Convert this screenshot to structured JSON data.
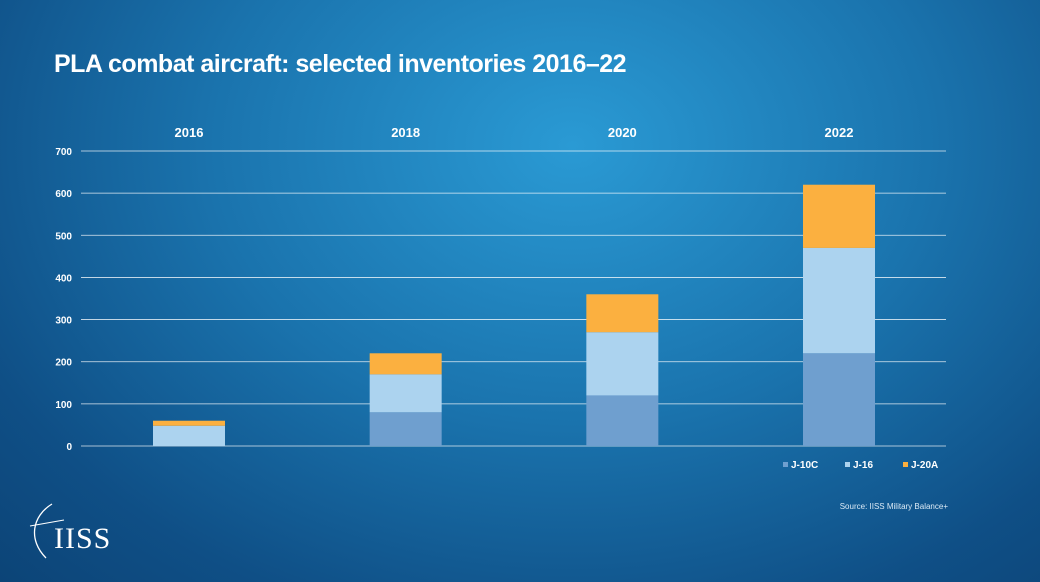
{
  "title": "PLA combat aircraft: selected inventories 2016–22",
  "source": "Source: IISS Military Balance+",
  "logo_text": "IISS",
  "colors": {
    "J-10C": "#6f9fcf",
    "J-16": "#acd3ef",
    "J-20A": "#fbb040",
    "gridline": "#ffffff"
  },
  "chart_data": {
    "type": "bar",
    "stacked": true,
    "categories": [
      "2016",
      "2018",
      "2020",
      "2022"
    ],
    "series": [
      {
        "name": "J-10C",
        "values": [
          0,
          80,
          120,
          220
        ]
      },
      {
        "name": "J-16",
        "values": [
          48,
          90,
          150,
          250
        ]
      },
      {
        "name": "J-20A",
        "values": [
          12,
          50,
          90,
          150
        ]
      }
    ],
    "ylim": [
      0,
      700
    ],
    "yticks": [
      0,
      100,
      200,
      300,
      400,
      500,
      600,
      700
    ],
    "grid": true,
    "legend_position": "bottom-right"
  }
}
